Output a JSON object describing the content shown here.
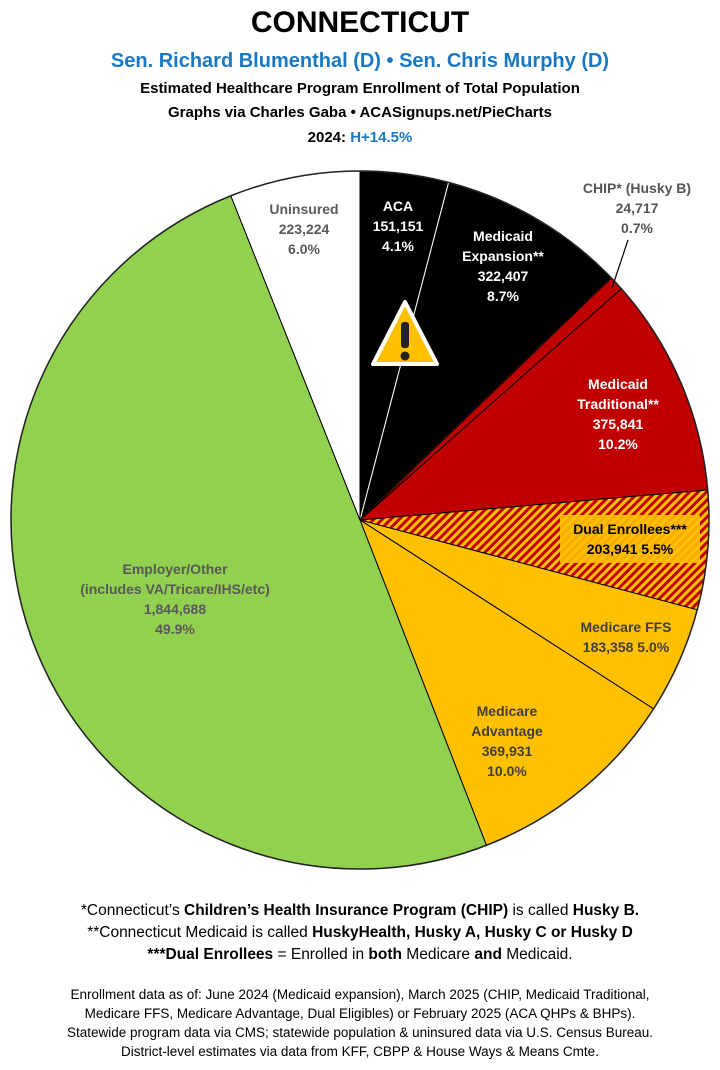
{
  "header": {
    "title": "CONNECTICUT",
    "senators": "Sen. Richard Blumenthal (D) • Sen. Chris Murphy (D)",
    "subtitle": "Estimated Healthcare Program Enrollment of Total Population",
    "credit": "Graphs via Charles Gaba   •   ACASignups.net/PieCharts",
    "lean_label": "2024:",
    "lean_value": "H+14.5%"
  },
  "chart_data": {
    "type": "pie",
    "start": "top, clockwise",
    "slices": [
      {
        "label": "ACA",
        "value": 151151,
        "pct": "4.1%",
        "value_text": "151,151",
        "color": "#000000",
        "text_color": "#ffffff"
      },
      {
        "label": "Medicaid Expansion**",
        "value": 322407,
        "pct": "8.7%",
        "value_text": "322,407",
        "color": "#000000",
        "text_color": "#ffffff"
      },
      {
        "label": "CHIP* (Husky B)",
        "value": 24717,
        "pct": "0.7%",
        "value_text": "24,717",
        "color": "#c00000",
        "text_color": "#555555"
      },
      {
        "label": "Medicaid Traditional**",
        "value": 375841,
        "pct": "10.2%",
        "value_text": "375,841",
        "color": "#c00000",
        "text_color": "#ffffff"
      },
      {
        "label": "Dual Enrollees***",
        "value": 203941,
        "pct": "5.5%",
        "value_text": "203,941",
        "color": "#c00000",
        "hatch": "#ffc000",
        "text_color": "#000000"
      },
      {
        "label": "Medicare FFS",
        "value": 183358,
        "pct": "5.0%",
        "value_text": "183,358",
        "color": "#ffc000",
        "text_color": "#404040"
      },
      {
        "label": "Medicare Advantage",
        "value": 369931,
        "pct": "10.0%",
        "value_text": "369,931",
        "color": "#ffc000",
        "text_color": "#404040"
      },
      {
        "label": "Employer/Other (includes VA/Tricare/IHS/etc)",
        "value": 1844688,
        "pct": "49.9%",
        "value_text": "1,844,688",
        "color": "#92d050",
        "text_color": "#595959"
      },
      {
        "label": "Uninsured",
        "value": 223224,
        "pct": "6.0%",
        "value_text": "223,224",
        "color": "#ffffff",
        "text_color": "#595959"
      }
    ],
    "annotation_icon": "warning-icon"
  },
  "labels": {
    "aca": [
      "ACA",
      "151,151",
      "4.1%"
    ],
    "expansion": [
      "Medicaid",
      "Expansion**",
      "322,407",
      "8.7%"
    ],
    "chip": [
      "CHIP* (Husky B)",
      "24,717",
      "0.7%"
    ],
    "traditional": [
      "Medicaid",
      "Traditional**",
      "375,841",
      "10.2%"
    ],
    "dual": [
      "Dual Enrollees***",
      "203,941 5.5%"
    ],
    "ffs": [
      "Medicare FFS",
      "183,358 5.0%"
    ],
    "ma": [
      "Medicare",
      "Advantage",
      "369,931",
      "10.0%"
    ],
    "employer": [
      "Employer/Other",
      "(includes VA/Tricare/IHS/etc)",
      "1,844,688",
      "49.9%"
    ],
    "uninsured": [
      "Uninsured",
      "223,224",
      "6.0%"
    ]
  },
  "footer": {
    "note1_a": "*Connecticut’s ",
    "note1_b": "Children’s Health Insurance Program (CHIP)",
    "note1_c": " is called ",
    "note1_d": "Husky B.",
    "note2_a": "**Connecticut Medicaid is called ",
    "note2_b": "HuskyHealth, Husky A, Husky C or Husky D",
    "note3_a": "***Dual Enrollees",
    "note3_b": " = Enrolled in ",
    "note3_c": "both",
    "note3_d": " Medicare ",
    "note3_e": "and",
    "note3_f": " Medicaid.",
    "sources": [
      "Enrollment data as of: June 2024 (Medicaid expansion), March 2025 (CHIP, Medicaid Traditional,",
      "Medicare FFS, Medicare Advantage, Dual Eligibles) or February 2025 (ACA QHPs & BHPs).",
      "Statewide program data via CMS; statewide population & uninsured data via U.S. Census Bureau.",
      "District-level estimates via data from KFF, CBPP & House Ways & Means Cmte."
    ]
  }
}
